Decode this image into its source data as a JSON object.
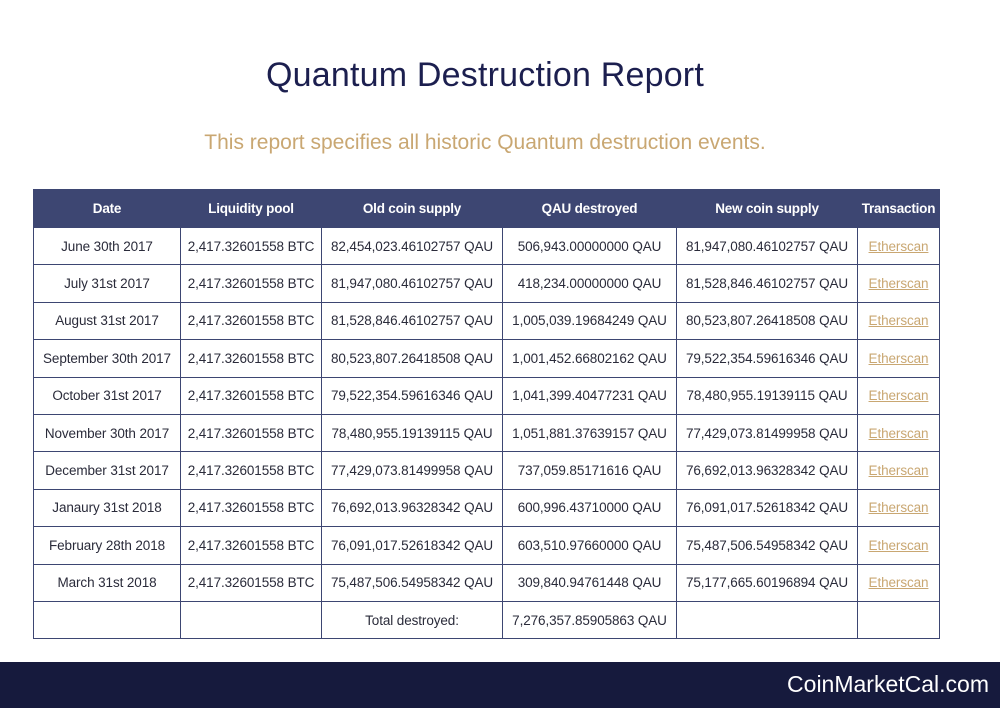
{
  "title": "Quantum Destruction Report",
  "subtitle": "This report specifies all historic Quantum destruction events.",
  "table": {
    "headers": [
      "Date",
      "Liquidity pool",
      "Old coin supply",
      "QAU destroyed",
      "New coin supply",
      "Transaction"
    ],
    "rows": [
      [
        "June 30th 2017",
        "2,417.32601558 BTC",
        "82,454,023.46102757 QAU",
        "506,943.00000000 QAU",
        "81,947,080.46102757 QAU",
        "Etherscan"
      ],
      [
        "July 31st 2017",
        "2,417.32601558 BTC",
        "81,947,080.46102757 QAU",
        "418,234.00000000 QAU",
        "81,528,846.46102757 QAU",
        "Etherscan"
      ],
      [
        "August 31st 2017",
        "2,417.32601558 BTC",
        "81,528,846.46102757 QAU",
        "1,005,039.19684249 QAU",
        "80,523,807.26418508 QAU",
        "Etherscan"
      ],
      [
        "September 30th 2017",
        "2,417.32601558 BTC",
        "80,523,807.26418508 QAU",
        "1,001,452.66802162 QAU",
        "79,522,354.59616346 QAU",
        "Etherscan"
      ],
      [
        "October 31st 2017",
        "2,417.32601558 BTC",
        "79,522,354.59616346 QAU",
        "1,041,399.40477231 QAU",
        "78,480,955.19139115 QAU",
        "Etherscan"
      ],
      [
        "November 30th 2017",
        "2,417.32601558 BTC",
        "78,480,955.19139115 QAU",
        "1,051,881.37639157 QAU",
        "77,429,073.81499958 QAU",
        "Etherscan"
      ],
      [
        "December 31st 2017",
        "2,417.32601558 BTC",
        "77,429,073.81499958 QAU",
        "737,059.85171616 QAU",
        "76,692,013.96328342 QAU",
        "Etherscan"
      ],
      [
        "Janaury 31st 2018",
        "2,417.32601558 BTC",
        "76,692,013.96328342 QAU",
        "600,996.43710000 QAU",
        "76,091,017.52618342 QAU",
        "Etherscan"
      ],
      [
        "February 28th 2018",
        "2,417.32601558 BTC",
        "76,091,017.52618342 QAU",
        "603,510.97660000 QAU",
        "75,487,506.54958342 QAU",
        "Etherscan"
      ],
      [
        "March 31st 2018",
        "2,417.32601558 BTC",
        "75,487,506.54958342 QAU",
        "309,840.94761448 QAU",
        "75,177,665.60196894 QAU",
        "Etherscan"
      ]
    ],
    "total_label": "Total destroyed:",
    "total_value": "7,276,357.85905863 QAU"
  },
  "footer": {
    "brand": "CoinMarketCal.com"
  },
  "colors": {
    "header_bg": "#3d4672",
    "title": "#1c1f4f",
    "accent": "#c9a772",
    "footer_bg": "#161a3d"
  }
}
